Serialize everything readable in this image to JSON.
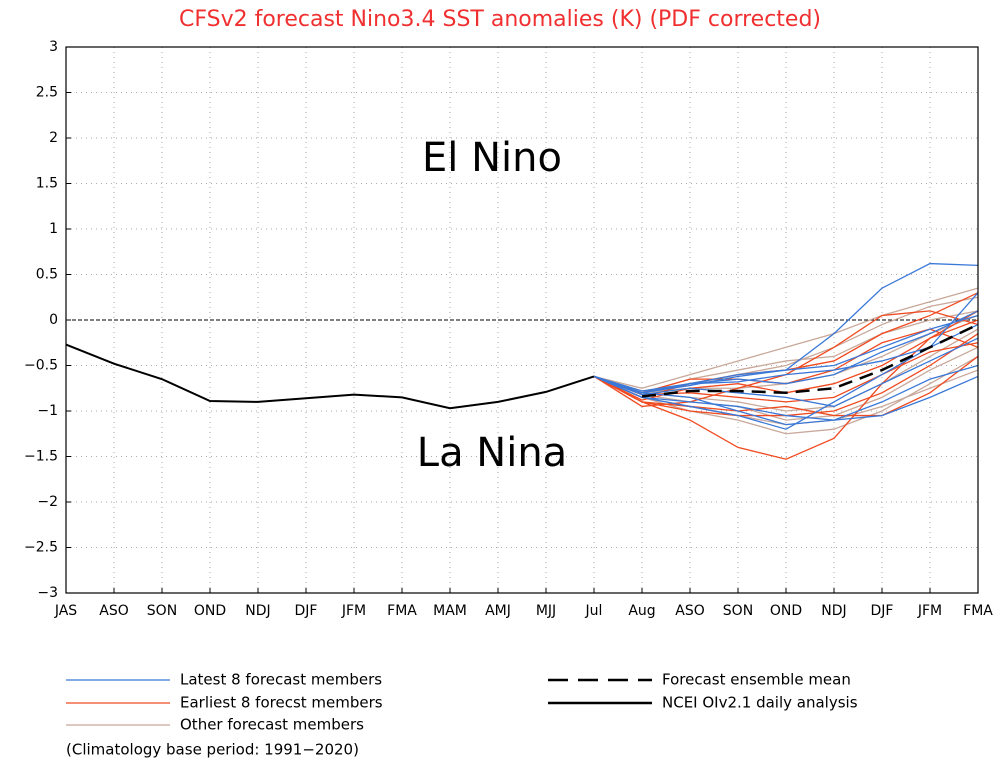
{
  "chart_data": {
    "type": "line",
    "title": "CFSv2 forecast Nino3.4 SST anomalies (K) (PDF corrected)",
    "categories": [
      "JAS",
      "ASO",
      "SON",
      "OND",
      "NDJ",
      "DJF",
      "JFM",
      "FMA",
      "MAM",
      "AMJ",
      "MJJ",
      "Jul",
      "Aug",
      "ASO",
      "SON",
      "OND",
      "NDJ",
      "DJF",
      "JFM",
      "FMA"
    ],
    "ylim": [
      -3,
      3
    ],
    "yticks": [
      {
        "value": -3,
        "label": "−3"
      },
      {
        "value": -2.5,
        "label": "−2.5"
      },
      {
        "value": -2,
        "label": "−2"
      },
      {
        "value": -1.5,
        "label": "−1.5"
      },
      {
        "value": -1,
        "label": "−1"
      },
      {
        "value": -0.5,
        "label": "−0.5"
      },
      0,
      0.5,
      1,
      1.5,
      2,
      2.5,
      3
    ],
    "grid": true,
    "annotations": [
      "El Nino",
      "La Nina"
    ],
    "note": "(Climatology base period: 1991−2020)",
    "series": [
      {
        "name": "Latest 8 forecast members",
        "color": "#3a78d8",
        "members": [
          [
            null,
            null,
            null,
            null,
            null,
            null,
            null,
            null,
            null,
            null,
            null,
            -0.62,
            -0.8,
            -0.7,
            -0.6,
            -0.55,
            -0.15,
            0.35,
            0.62,
            0.6
          ],
          [
            null,
            null,
            null,
            null,
            null,
            null,
            null,
            null,
            null,
            null,
            null,
            -0.62,
            -0.85,
            -0.95,
            -1.05,
            -1.2,
            -0.9,
            -0.6,
            -0.3,
            0.3
          ],
          [
            null,
            null,
            null,
            null,
            null,
            null,
            null,
            null,
            null,
            null,
            null,
            -0.62,
            -0.8,
            -0.85,
            -1.0,
            -1.15,
            -1.1,
            -1.05,
            -0.85,
            -0.62
          ],
          [
            null,
            null,
            null,
            null,
            null,
            null,
            null,
            null,
            null,
            null,
            null,
            -0.62,
            -0.78,
            -0.7,
            -0.65,
            -0.7,
            -0.6,
            -0.35,
            -0.15,
            0.1
          ],
          [
            null,
            null,
            null,
            null,
            null,
            null,
            null,
            null,
            null,
            null,
            null,
            -0.62,
            -0.82,
            -0.75,
            -0.8,
            -0.85,
            -0.95,
            -0.7,
            -0.45,
            -0.2
          ],
          [
            null,
            null,
            null,
            null,
            null,
            null,
            null,
            null,
            null,
            null,
            null,
            -0.62,
            -0.8,
            -0.7,
            -0.68,
            -0.6,
            -0.55,
            -0.45,
            -0.3,
            -0.05
          ],
          [
            null,
            null,
            null,
            null,
            null,
            null,
            null,
            null,
            null,
            null,
            null,
            -0.62,
            -0.85,
            -0.9,
            -0.95,
            -1.05,
            -1.1,
            -0.9,
            -0.65,
            -0.5
          ],
          [
            null,
            null,
            null,
            null,
            null,
            null,
            null,
            null,
            null,
            null,
            null,
            -0.62,
            -0.8,
            -0.72,
            -0.62,
            -0.55,
            -0.5,
            -0.3,
            -0.1,
            0.05
          ]
        ]
      },
      {
        "name": "Earliest 8 forecst members",
        "color": "#f04a20",
        "members": [
          [
            null,
            null,
            null,
            null,
            null,
            null,
            null,
            null,
            null,
            null,
            null,
            -0.62,
            -0.9,
            -1.1,
            -1.4,
            -1.53,
            -1.3,
            -0.7,
            -0.2,
            0.1
          ],
          [
            null,
            null,
            null,
            null,
            null,
            null,
            null,
            null,
            null,
            null,
            null,
            -0.62,
            -0.95,
            -0.9,
            -0.75,
            -0.6,
            -0.3,
            0.05,
            0.1,
            -0.05
          ],
          [
            null,
            null,
            null,
            null,
            null,
            null,
            null,
            null,
            null,
            null,
            null,
            -0.62,
            -0.85,
            -0.7,
            -0.6,
            -0.55,
            -0.45,
            -0.15,
            0.05,
            0.3
          ],
          [
            null,
            null,
            null,
            null,
            null,
            null,
            null,
            null,
            null,
            null,
            null,
            -0.62,
            -0.9,
            -1.0,
            -1.05,
            -1.05,
            -1.0,
            -0.8,
            -0.5,
            -0.15
          ],
          [
            null,
            null,
            null,
            null,
            null,
            null,
            null,
            null,
            null,
            null,
            null,
            -0.62,
            -0.82,
            -0.8,
            -0.85,
            -0.9,
            -0.85,
            -0.6,
            -0.35,
            -0.25
          ],
          [
            null,
            null,
            null,
            null,
            null,
            null,
            null,
            null,
            null,
            null,
            null,
            -0.62,
            -0.88,
            -0.75,
            -0.7,
            -0.8,
            -0.7,
            -0.5,
            -0.2,
            0.0
          ],
          [
            null,
            null,
            null,
            null,
            null,
            null,
            null,
            null,
            null,
            null,
            null,
            -0.62,
            -0.9,
            -0.95,
            -1.0,
            -0.95,
            -1.05,
            -1.05,
            -0.8,
            -0.4
          ],
          [
            null,
            null,
            null,
            null,
            null,
            null,
            null,
            null,
            null,
            null,
            null,
            -0.62,
            -0.8,
            -0.65,
            -0.65,
            -0.7,
            -0.55,
            -0.25,
            -0.1,
            -0.3
          ]
        ]
      },
      {
        "name": "Other forecast members",
        "color": "#c8a89a",
        "members": [
          [
            null,
            null,
            null,
            null,
            null,
            null,
            null,
            null,
            null,
            null,
            null,
            -0.62,
            -0.75,
            -0.6,
            -0.45,
            -0.3,
            -0.15,
            0.05,
            0.2,
            0.35
          ],
          [
            null,
            null,
            null,
            null,
            null,
            null,
            null,
            null,
            null,
            null,
            null,
            -0.62,
            -0.8,
            -0.85,
            -0.9,
            -1.0,
            -0.95,
            -0.7,
            -0.4,
            -0.1
          ],
          [
            null,
            null,
            null,
            null,
            null,
            null,
            null,
            null,
            null,
            null,
            null,
            -0.62,
            -0.85,
            -1.0,
            -1.1,
            -1.25,
            -1.2,
            -1.0,
            -0.7,
            -0.4
          ],
          [
            null,
            null,
            null,
            null,
            null,
            null,
            null,
            null,
            null,
            null,
            null,
            -0.62,
            -0.78,
            -0.7,
            -0.6,
            -0.5,
            -0.3,
            -0.05,
            0.15,
            0.25
          ],
          [
            null,
            null,
            null,
            null,
            null,
            null,
            null,
            null,
            null,
            null,
            null,
            -0.62,
            -0.82,
            -0.9,
            -0.95,
            -1.1,
            -1.05,
            -0.85,
            -0.55,
            -0.3
          ],
          [
            null,
            null,
            null,
            null,
            null,
            null,
            null,
            null,
            null,
            null,
            null,
            -0.62,
            -0.8,
            -0.65,
            -0.55,
            -0.45,
            -0.4,
            -0.15,
            0.0,
            0.1
          ],
          [
            null,
            null,
            null,
            null,
            null,
            null,
            null,
            null,
            null,
            null,
            null,
            -0.62,
            -0.85,
            -0.95,
            -1.05,
            -1.15,
            -1.1,
            -0.95,
            -0.75,
            -0.55
          ],
          [
            null,
            null,
            null,
            null,
            null,
            null,
            null,
            null,
            null,
            null,
            null,
            -0.62,
            -0.8,
            -0.75,
            -0.75,
            -0.7,
            -0.6,
            -0.4,
            -0.15,
            0.05
          ]
        ]
      },
      {
        "name": "Forecast ensemble mean",
        "color": "#000000",
        "dashed": true,
        "values": [
          null,
          null,
          null,
          null,
          null,
          null,
          null,
          null,
          null,
          null,
          null,
          null,
          -0.84,
          -0.78,
          -0.78,
          -0.8,
          -0.75,
          -0.55,
          -0.3,
          -0.05
        ]
      },
      {
        "name": "NCEI OIv2.1 daily analysis",
        "color": "#000000",
        "values": [
          -0.27,
          -0.48,
          -0.65,
          -0.89,
          -0.9,
          -0.86,
          -0.82,
          -0.85,
          -0.97,
          -0.9,
          -0.79,
          -0.62,
          null,
          null,
          null,
          null,
          null,
          null,
          null,
          null
        ]
      }
    ]
  }
}
